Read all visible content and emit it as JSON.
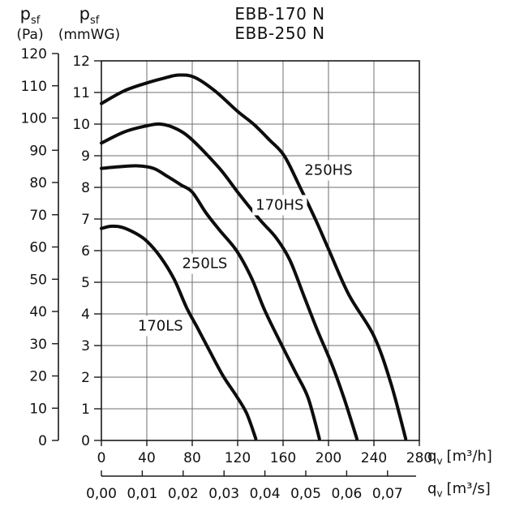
{
  "title": {
    "line1": "EBB-170 N",
    "line2": "EBB-250 N"
  },
  "y_axis_pa": {
    "symbol": "p",
    "symbol_sub": "sf",
    "unit": "(Pa)",
    "min": 0,
    "max": 120,
    "step": 10,
    "ticks": [
      "0",
      "10",
      "20",
      "30",
      "40",
      "50",
      "60",
      "70",
      "80",
      "90",
      "100",
      "110",
      "120"
    ]
  },
  "y_axis_mmwg": {
    "symbol": "p",
    "symbol_sub": "sf",
    "unit": "(mmWG)",
    "min": 0,
    "max": 12,
    "step": 1,
    "ticks": [
      "0",
      "1",
      "2",
      "3",
      "4",
      "5",
      "6",
      "7",
      "8",
      "9",
      "10",
      "11",
      "12"
    ]
  },
  "x_axis_m3h": {
    "symbol": "q",
    "symbol_sub": "v",
    "unit": "[m³/h]",
    "min": 0,
    "max": 280,
    "step": 40,
    "ticks": [
      "0",
      "40",
      "80",
      "120",
      "160",
      "200",
      "240",
      "280"
    ],
    "tick_values": [
      0,
      40,
      80,
      120,
      160,
      200,
      240,
      280
    ]
  },
  "x_axis_m3s": {
    "symbol": "q",
    "symbol_sub": "v",
    "unit": "[m³/s]",
    "ticks": [
      "0,00",
      "0,01",
      "0,02",
      "0,03",
      "0,04",
      "0,05",
      "0,06",
      "0,07"
    ],
    "tick_values_m3h": [
      0,
      36,
      72,
      108,
      144,
      180,
      216,
      252
    ]
  },
  "chart_data": {
    "type": "line",
    "title": "EBB-170 N / EBB-250 N",
    "xlabel": "qv [m³/h] (secondary axis: qv [m³/s])",
    "ylabel": "psf (Pa) / psf (mmWG)",
    "x_range_m3h": [
      0,
      280
    ],
    "y_range_mmwg": [
      0,
      12
    ],
    "y_range_pa": [
      0,
      120
    ],
    "grid": true,
    "legend_position": "inline-annotations",
    "series": [
      {
        "name": "250HS",
        "label": "250HS",
        "label_at": {
          "x_m3h": 200,
          "y_mmwg": 8.55
        },
        "points_m3h_mmwg": [
          [
            0,
            10.65
          ],
          [
            20,
            11.05
          ],
          [
            40,
            11.3
          ],
          [
            55,
            11.45
          ],
          [
            68,
            11.55
          ],
          [
            82,
            11.48
          ],
          [
            100,
            11.05
          ],
          [
            120,
            10.4
          ],
          [
            134,
            10.0
          ],
          [
            148,
            9.5
          ],
          [
            161,
            9.0
          ],
          [
            175,
            8.0
          ],
          [
            189,
            6.95
          ],
          [
            200,
            6.05
          ],
          [
            218,
            4.6
          ],
          [
            240,
            3.3
          ],
          [
            255,
            1.8
          ],
          [
            268,
            0.05
          ]
        ]
      },
      {
        "name": "170HS",
        "label": "170HS",
        "label_at": {
          "x_m3h": 157,
          "y_mmwg": 7.45
        },
        "points_m3h_mmwg": [
          [
            0,
            9.4
          ],
          [
            20,
            9.75
          ],
          [
            38,
            9.93
          ],
          [
            52,
            10.0
          ],
          [
            66,
            9.85
          ],
          [
            80,
            9.5
          ],
          [
            104,
            8.6
          ],
          [
            120,
            7.85
          ],
          [
            139,
            7.0
          ],
          [
            154,
            6.4
          ],
          [
            166,
            5.7
          ],
          [
            178,
            4.6
          ],
          [
            190,
            3.5
          ],
          [
            203,
            2.4
          ],
          [
            214,
            1.3
          ],
          [
            225,
            0.05
          ]
        ]
      },
      {
        "name": "250LS",
        "label": "250LS",
        "label_at": {
          "x_m3h": 91,
          "y_mmwg": 5.6
        },
        "points_m3h_mmwg": [
          [
            0,
            8.6
          ],
          [
            15,
            8.65
          ],
          [
            32,
            8.68
          ],
          [
            46,
            8.6
          ],
          [
            58,
            8.35
          ],
          [
            70,
            8.08
          ],
          [
            80,
            7.85
          ],
          [
            92,
            7.2
          ],
          [
            104,
            6.65
          ],
          [
            119,
            6.0
          ],
          [
            132,
            5.15
          ],
          [
            144,
            4.1
          ],
          [
            159,
            3.0
          ],
          [
            171,
            2.15
          ],
          [
            182,
            1.35
          ],
          [
            192,
            0.05
          ]
        ]
      },
      {
        "name": "170LS",
        "label": "170LS",
        "label_at": {
          "x_m3h": 52,
          "y_mmwg": 3.63
        },
        "points_m3h_mmwg": [
          [
            0,
            6.7
          ],
          [
            8,
            6.77
          ],
          [
            18,
            6.74
          ],
          [
            30,
            6.55
          ],
          [
            40,
            6.3
          ],
          [
            52,
            5.8
          ],
          [
            64,
            5.1
          ],
          [
            75,
            4.2
          ],
          [
            84,
            3.6
          ],
          [
            95,
            2.85
          ],
          [
            107,
            2.05
          ],
          [
            119,
            1.4
          ],
          [
            128,
            0.85
          ],
          [
            136,
            0.05
          ]
        ]
      }
    ]
  },
  "colors": {
    "curve": "#0d0d0d",
    "grid": "#6f6f6f",
    "axis": "#1a1a1a",
    "text": "#111111",
    "background": "#ffffff"
  }
}
